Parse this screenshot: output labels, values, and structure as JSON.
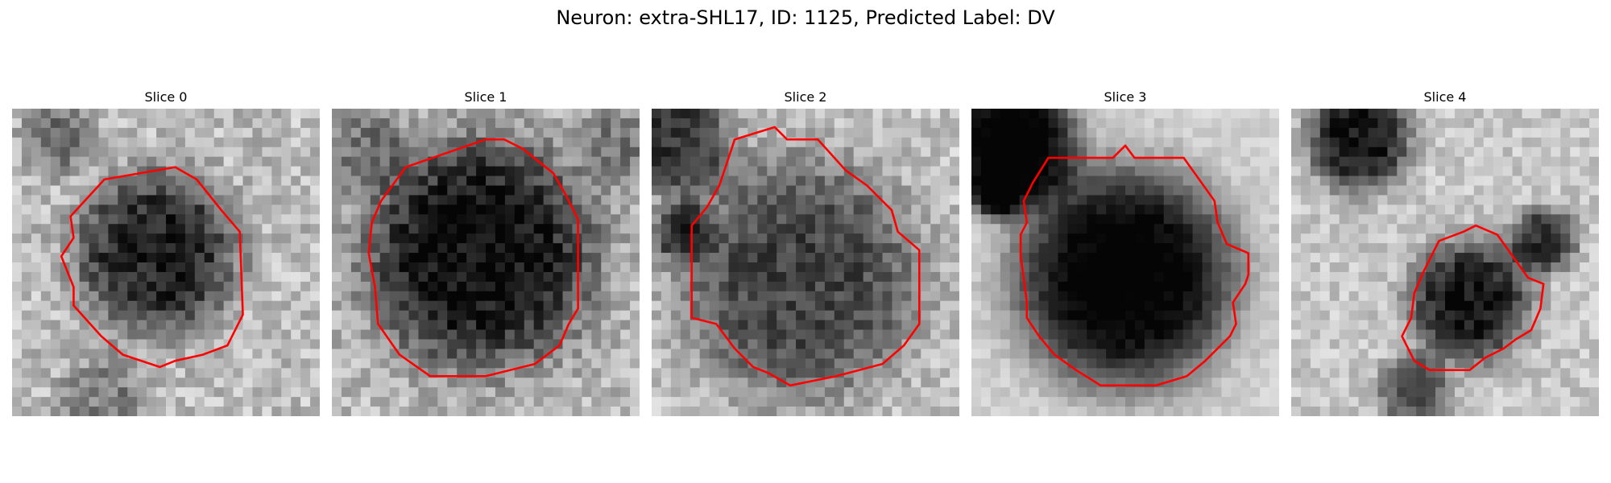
{
  "figure": {
    "title": "Neuron: extra-SHL17, ID: 1125, Predicted Label: DV"
  },
  "panels": [
    {
      "title": "Slice 0"
    },
    {
      "title": "Slice 1"
    },
    {
      "title": "Slice 2"
    },
    {
      "title": "Slice 3"
    },
    {
      "title": "Slice 4"
    }
  ],
  "colors": {
    "contour": "#ff0000",
    "background": "#ffffff"
  }
}
